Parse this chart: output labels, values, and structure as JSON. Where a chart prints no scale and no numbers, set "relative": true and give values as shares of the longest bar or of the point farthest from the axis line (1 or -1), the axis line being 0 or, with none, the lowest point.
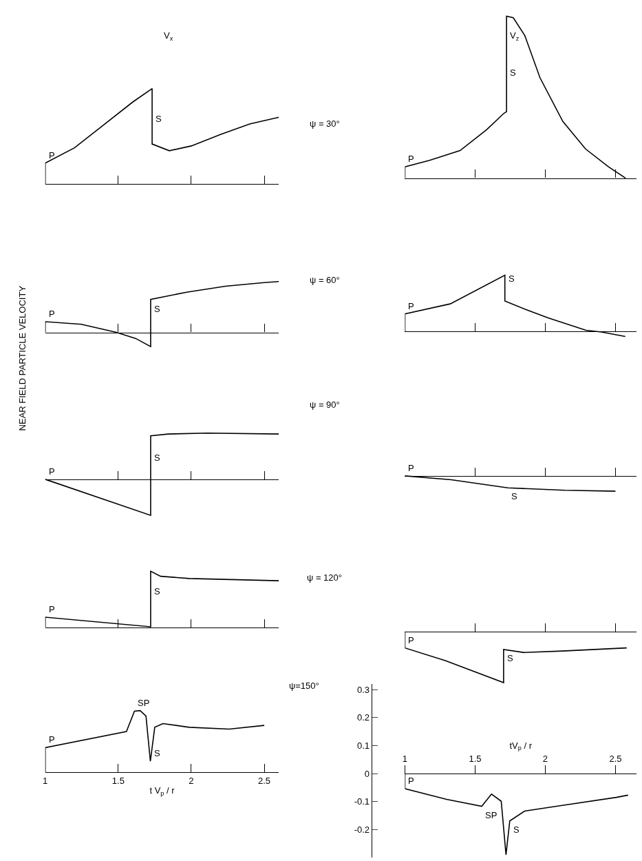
{
  "chart_data": [
    {
      "type": "line",
      "title": "V$_{x}$",
      "relative": true,
      "xlim": [
        1,
        2.6
      ],
      "xticks": [
        {
          "value": 1.5,
          "label": null
        },
        {
          "value": 2,
          "label": null
        },
        {
          "value": 2.5,
          "label": null
        }
      ],
      "tick_labels": false,
      "x": [
        1,
        1,
        1.2,
        1.4,
        1.6,
        1.732,
        1.732,
        1.85,
        2.0,
        2.2,
        2.4,
        2.6
      ],
      "series": [
        {
          "color": "#000000",
          "values": [
            0,
            0.22,
            0.38,
            0.62,
            0.86,
            1,
            0.42,
            0.35,
            0.4,
            0.52,
            0.63,
            0.7
          ]
        }
      ],
      "annotations": [
        {
          "text": "P",
          "x": 1,
          "y": 0.22
        },
        {
          "text": "S",
          "x": 1.732,
          "y": 0.6
        }
      ]
    },
    {
      "type": "line",
      "title": "V$_{z}$",
      "relative": true,
      "xlim": [
        1,
        2.65
      ],
      "xticks": [
        {
          "value": 1.5,
          "label": null
        },
        {
          "value": 2,
          "label": null
        },
        {
          "value": 2.5,
          "label": null
        }
      ],
      "tick_labels": false,
      "x": [
        1,
        1,
        1.176,
        1.393,
        1.583,
        1.705,
        1.724,
        1.724,
        1.772,
        1.854,
        1.962,
        2.125,
        2.287,
        2.45,
        2.572
      ],
      "series": [
        {
          "color": "#000000",
          "values": [
            0,
            0.07,
            0.11,
            0.17,
            0.3,
            0.4,
            0.41,
            1,
            0.99,
            0.88,
            0.62,
            0.35,
            0.18,
            0.07,
            0
          ]
        }
      ],
      "annotations": [
        "ψ = 30°",
        {
          "text": "P",
          "x": 1,
          "y": 0.07
        },
        {
          "text": "S",
          "x": 1.724,
          "y": 0.6
        }
      ]
    },
    {
      "type": "line",
      "relative": true,
      "xlim": [
        1,
        2.6
      ],
      "xticks": [
        {
          "value": 1.5,
          "label": null
        },
        {
          "value": 2,
          "label": null
        },
        {
          "value": 2.5,
          "label": null
        }
      ],
      "tick_labels": false,
      "x": [
        1,
        1,
        1.246,
        1.487,
        1.62,
        1.722,
        1.722,
        1.968,
        2.235,
        2.5,
        2.6
      ],
      "series": [
        {
          "color": "#000000",
          "values": [
            0,
            0.21,
            0.16,
            0,
            -0.12,
            -0.28,
            0.65,
            0.79,
            0.91,
            0.98,
            1
          ]
        }
      ],
      "annotations": [
        {
          "text": "P",
          "x": 1,
          "y": 0.21
        },
        {
          "text": "S",
          "x": 1.722,
          "y": 0.3
        }
      ]
    },
    {
      "type": "line",
      "relative": true,
      "xlim": [
        1,
        2.65
      ],
      "xticks": [
        {
          "value": 1.5,
          "label": null
        },
        {
          "value": 2,
          "label": null
        },
        {
          "value": 2.5,
          "label": null
        }
      ],
      "tick_labels": false,
      "x": [
        1,
        1,
        1.323,
        1.712,
        1.712,
        1.86,
        2.02,
        2.29,
        2.4,
        2.57
      ],
      "series": [
        {
          "color": "#000000",
          "values": [
            0,
            0.31,
            0.49,
            1,
            0.54,
            0.39,
            0.24,
            0.02,
            -0.01,
            -0.09
          ]
        }
      ],
      "annotations": [
        "ψ = 60°",
        {
          "text": "P",
          "x": 1,
          "y": 0.31
        },
        {
          "text": "S",
          "x": 1.712,
          "y": 0.8
        }
      ]
    },
    {
      "type": "line",
      "ylabel": "NEAR FIELD PARTICLE VELOCITY",
      "relative": true,
      "xlim": [
        1,
        2.6
      ],
      "xticks": [
        {
          "value": 1.5,
          "label": null
        },
        {
          "value": 2,
          "label": null
        },
        {
          "value": 2.5,
          "label": null
        }
      ],
      "tick_labels": false,
      "x": [
        1,
        1.722,
        1.722,
        1.842,
        2.11,
        2.6
      ],
      "series": [
        {
          "color": "#000000",
          "values": [
            0,
            -0.78,
            0.94,
            0.98,
            1,
            0.98
          ]
        }
      ],
      "annotations": [
        {
          "text": "P",
          "x": 1,
          "y": 0
        },
        {
          "text": "S",
          "x": 1.722,
          "y": 0.3
        }
      ]
    },
    {
      "type": "line",
      "relative": true,
      "xlim": [
        1,
        2.65
      ],
      "xticks": [
        {
          "value": 1.5,
          "label": null
        },
        {
          "value": 2,
          "label": null
        },
        {
          "value": 2.5,
          "label": null
        }
      ],
      "tick_labels": false,
      "x": [
        1,
        1.33,
        1.733,
        2.14,
        2.5
      ],
      "series": [
        {
          "color": "#000000",
          "values": [
            0,
            -0.25,
            -0.78,
            -0.94,
            -1
          ]
        }
      ],
      "annotations": [
        "ψ = 90°",
        {
          "text": "P",
          "x": 1,
          "y": 0
        },
        {
          "text": "S",
          "x": 1.733,
          "y": -0.78
        }
      ]
    },
    {
      "type": "line",
      "relative": true,
      "xlim": [
        1,
        2.6
      ],
      "xticks": [
        {
          "value": 1.5,
          "label": null
        },
        {
          "value": 2,
          "label": null
        },
        {
          "value": 2.5,
          "label": null
        }
      ],
      "tick_labels": false,
      "x": [
        1,
        1,
        1.722,
        1.722,
        1.79,
        1.986,
        2.6
      ],
      "series": [
        {
          "color": "#000000",
          "values": [
            0,
            0.18,
            0.01,
            1,
            0.91,
            0.87,
            0.83
          ]
        }
      ],
      "annotations": [
        {
          "text": "P",
          "x": 1,
          "y": 0.18
        },
        {
          "text": "S",
          "x": 1.722,
          "y": 0.5
        }
      ]
    },
    {
      "type": "line",
      "relative": true,
      "xlim": [
        1,
        2.65
      ],
      "xticks": [
        {
          "value": 1.5,
          "label": null
        },
        {
          "value": 2,
          "label": null
        },
        {
          "value": 2.5,
          "label": null
        }
      ],
      "tick_labels": false,
      "x": [
        1,
        1,
        1.29,
        1.703,
        1.703,
        1.85,
        2.125,
        2.58
      ],
      "series": [
        {
          "color": "#000000",
          "values": [
            0,
            -0.32,
            -0.57,
            -1,
            -0.35,
            -0.41,
            -0.38,
            -0.32
          ]
        }
      ],
      "annotations": [
        "ψ = 120°",
        {
          "text": "P",
          "x": 1,
          "y": -0.32
        },
        {
          "text": "S",
          "x": 1.703,
          "y": -0.35
        }
      ]
    },
    {
      "type": "line",
      "xlabel": "t V$_{p}$ / r",
      "relative": true,
      "xlim": [
        1,
        2.6
      ],
      "xticks": [
        1,
        1.5,
        2,
        2.5
      ],
      "tick_labels": "x",
      "x": [
        1,
        1,
        1.556,
        1.611,
        1.65,
        1.69,
        1.72,
        1.75,
        1.806,
        1.986,
        2.26,
        2.5
      ],
      "series": [
        {
          "color": "#000000",
          "values": [
            0,
            0.4,
            0.66,
            0.99,
            1,
            0.91,
            0.18,
            0.73,
            0.79,
            0.73,
            0.7,
            0.76
          ]
        }
      ],
      "annotations": [
        {
          "text": "P",
          "x": 1,
          "y": 0.4
        },
        {
          "text": "SP",
          "x": 1.611,
          "y": 0.99
        },
        {
          "text": "S",
          "x": 1.72,
          "y": 0.18
        }
      ]
    },
    {
      "type": "line",
      "xlabel": "tV$_{p}$ / r",
      "xlim": [
        1,
        2.65
      ],
      "xticks": [
        1,
        1.5,
        2,
        2.5
      ],
      "ylim": [
        -0.3,
        0.32
      ],
      "yticks": [
        0.3,
        0.2,
        0.1,
        0,
        -0.1,
        -0.2
      ],
      "x": [
        1,
        1,
        1.297,
        1.547,
        1.617,
        1.686,
        1.72,
        1.747,
        1.853,
        2.13,
        2.506,
        2.59
      ],
      "series": [
        {
          "color": "#000000",
          "values": [
            0,
            -0.054,
            -0.092,
            -0.117,
            -0.073,
            -0.099,
            -0.29,
            -0.169,
            -0.134,
            -0.113,
            -0.085,
            -0.077
          ]
        }
      ],
      "annotations": [
        "ψ=150°",
        {
          "text": "P",
          "x": 1,
          "y": -0.054
        },
        {
          "text": "SP",
          "x": 1.547,
          "y": -0.117
        },
        {
          "text": "S",
          "x": 1.747,
          "y": -0.169
        }
      ]
    }
  ]
}
